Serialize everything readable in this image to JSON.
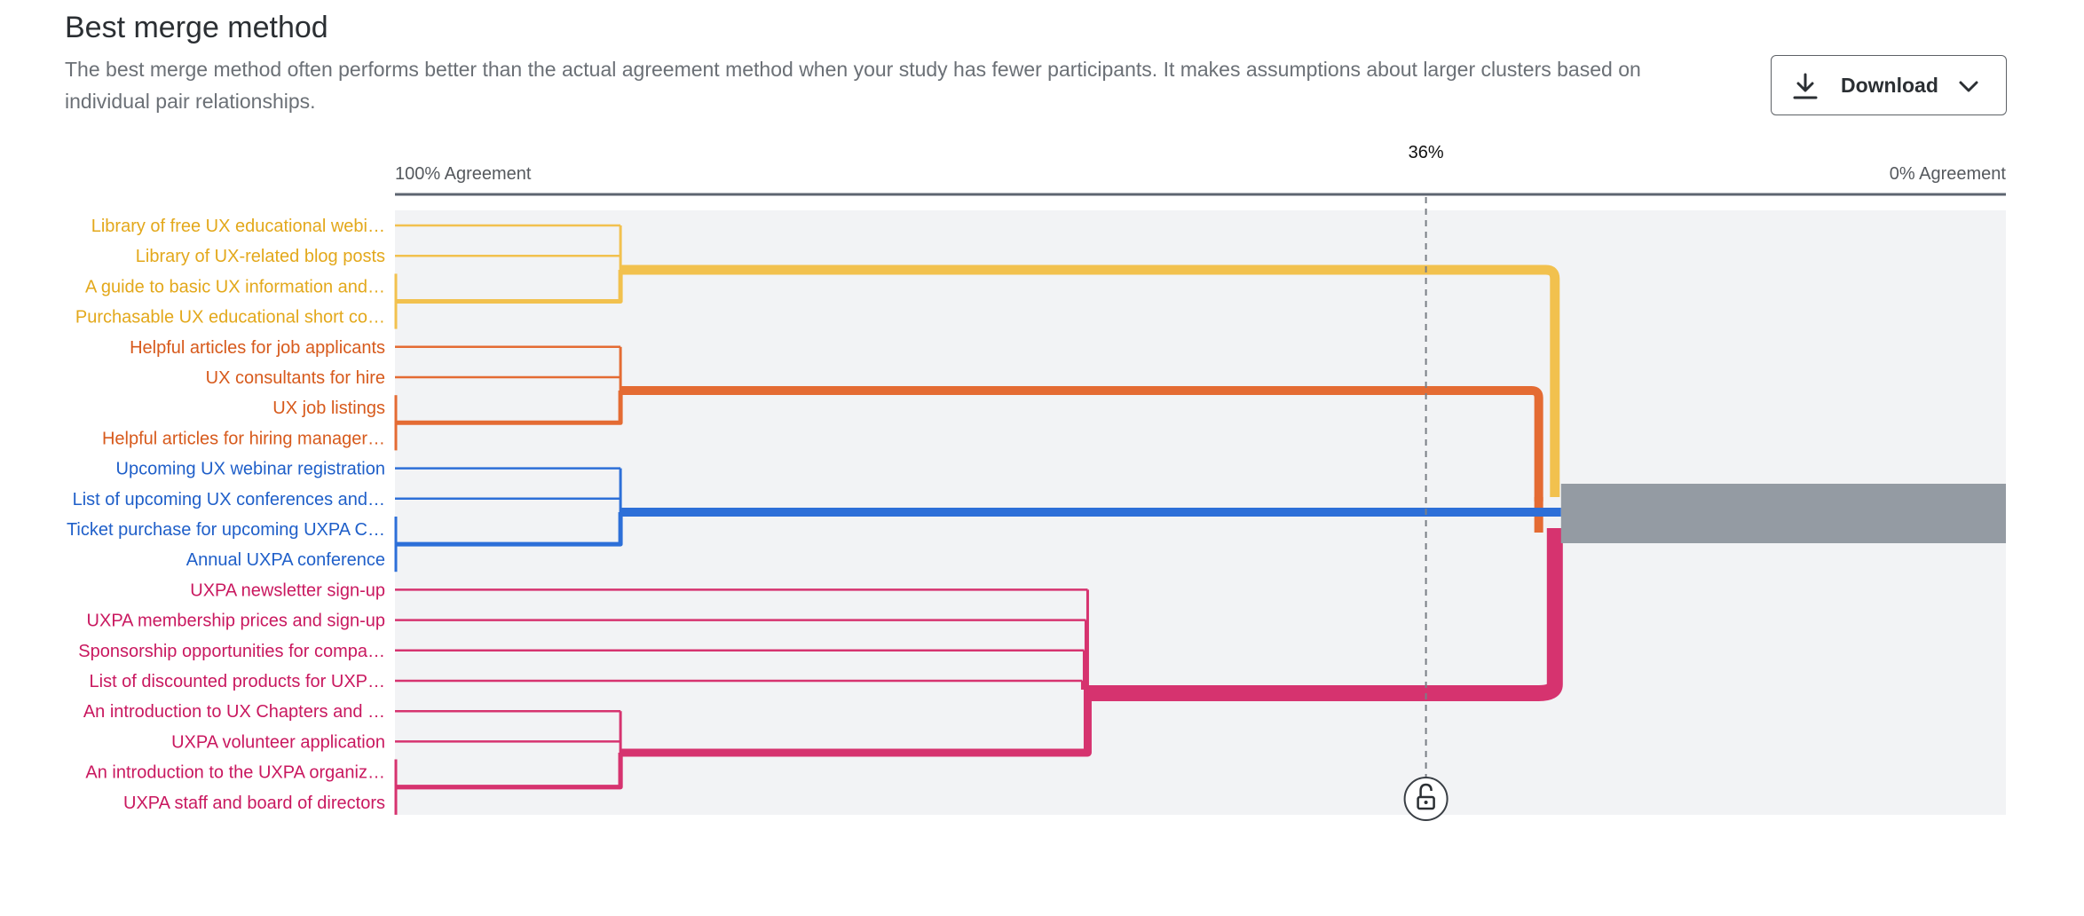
{
  "header": {
    "title": "Best merge method",
    "description": "The best merge method often performs better than the actual agreement method when your study has fewer participants. It makes assumptions about larger clusters based on individual pair relationships."
  },
  "toolbar": {
    "download_label": "Download",
    "download_icon": "download-icon",
    "menu_icon": "chevron-down-icon"
  },
  "chart_data": {
    "type": "dendrogram",
    "x_axis": {
      "left_label": "100% Agreement",
      "right_label": "0% Agreement",
      "range": [
        100,
        0
      ]
    },
    "cutoff": {
      "label": "36%",
      "value": 36,
      "icon": "lock-icon"
    },
    "colors": {
      "yellow": "#f2c14e",
      "orange": "#e46b33",
      "blue": "#2d6fd8",
      "pink": "#d6336f",
      "merged": "#949ba3",
      "background": "#f2f3f5"
    },
    "leaves": [
      {
        "label": "Library of free UX educational webi…",
        "color": "#e3a81b"
      },
      {
        "label": "Library of UX-related blog posts",
        "color": "#e3a81b"
      },
      {
        "label": "A guide to basic UX information and…",
        "color": "#e3a81b"
      },
      {
        "label": "Purchasable UX educational short co…",
        "color": "#e3a81b"
      },
      {
        "label": "Helpful articles for job applicants",
        "color": "#d75a1c"
      },
      {
        "label": "UX consultants for hire",
        "color": "#d75a1c"
      },
      {
        "label": "UX job listings",
        "color": "#d75a1c"
      },
      {
        "label": "Helpful articles for hiring manager…",
        "color": "#d75a1c"
      },
      {
        "label": "Upcoming UX webinar registration",
        "color": "#1f5fc9"
      },
      {
        "label": "List of upcoming UX conferences and…",
        "color": "#1f5fc9"
      },
      {
        "label": "Ticket purchase for upcoming UXPA C…",
        "color": "#1f5fc9"
      },
      {
        "label": "Annual UXPA conference",
        "color": "#1f5fc9"
      },
      {
        "label": "UXPA newsletter sign-up",
        "color": "#c9185f"
      },
      {
        "label": "UXPA membership prices and sign-up",
        "color": "#c9185f"
      },
      {
        "label": "Sponsorship opportunities for compa…",
        "color": "#c9185f"
      },
      {
        "label": "List of discounted products for UXP…",
        "color": "#c9185f"
      },
      {
        "label": "An introduction to UX Chapters and …",
        "color": "#c9185f"
      },
      {
        "label": "UXPA volunteer application",
        "color": "#c9185f"
      },
      {
        "label": "An introduction to the UXPA organiz…",
        "color": "#c9185f"
      },
      {
        "label": "UXPA staff and board of directors",
        "color": "#c9185f"
      }
    ],
    "merges": [
      {
        "cluster": "yellow",
        "members": [
          0,
          1,
          2,
          3
        ],
        "agreement": 86
      },
      {
        "cluster": "orange",
        "members": [
          4,
          5,
          6,
          7
        ],
        "agreement": 86
      },
      {
        "cluster": "blue",
        "members": [
          8,
          9,
          10,
          11
        ],
        "agreement": 86
      },
      {
        "cluster": "pink-a",
        "members": [
          12,
          13,
          14,
          15
        ],
        "agreement": 57
      },
      {
        "cluster": "pink-b",
        "members": [
          16,
          17,
          18,
          19
        ],
        "agreement": 86
      },
      {
        "cluster": "pink",
        "members": [
          "pink-a",
          "pink-b"
        ],
        "agreement": 57
      },
      {
        "cluster": "blue+orange",
        "members": [
          "blue",
          "orange"
        ],
        "agreement": 29
      },
      {
        "cluster": "blue+pink",
        "members": [
          "blue",
          "pink"
        ],
        "agreement": 29
      },
      {
        "cluster": "all",
        "members": [
          "yellow",
          "blue+orange",
          "blue+pink"
        ],
        "agreement": 28
      }
    ]
  }
}
